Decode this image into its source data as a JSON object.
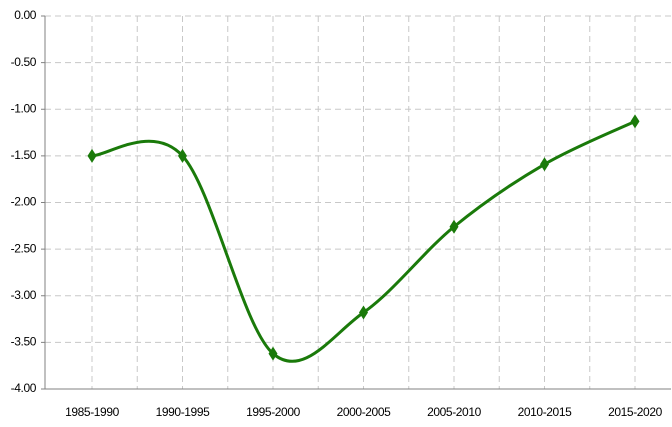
{
  "chart_data": {
    "type": "line",
    "categories": [
      "1985-1990",
      "1990-1995",
      "1995-2000",
      "2000-2005",
      "2005-2010",
      "2010-2015",
      "2015-2020"
    ],
    "series": [
      {
        "name": null,
        "color": "#1a7a0a",
        "values": [
          -1.5,
          -1.5,
          -3.62,
          -3.18,
          -2.26,
          -1.59,
          -1.13
        ]
      }
    ],
    "ylim": [
      -4,
      0
    ],
    "yticks": [
      {
        "value": 0,
        "label": "0.00"
      },
      {
        "value": -0.5,
        "label": "-0.50"
      },
      {
        "value": -1,
        "label": "-1.00"
      },
      {
        "value": -1.5,
        "label": "-1.50"
      },
      {
        "value": -2,
        "label": "-2.00"
      },
      {
        "value": -2.5,
        "label": "-2.50"
      },
      {
        "value": -3,
        "label": "-3.00"
      },
      {
        "value": -3.5,
        "label": "-3.50"
      },
      {
        "value": -4,
        "label": "-4.00"
      }
    ],
    "grid": true
  }
}
